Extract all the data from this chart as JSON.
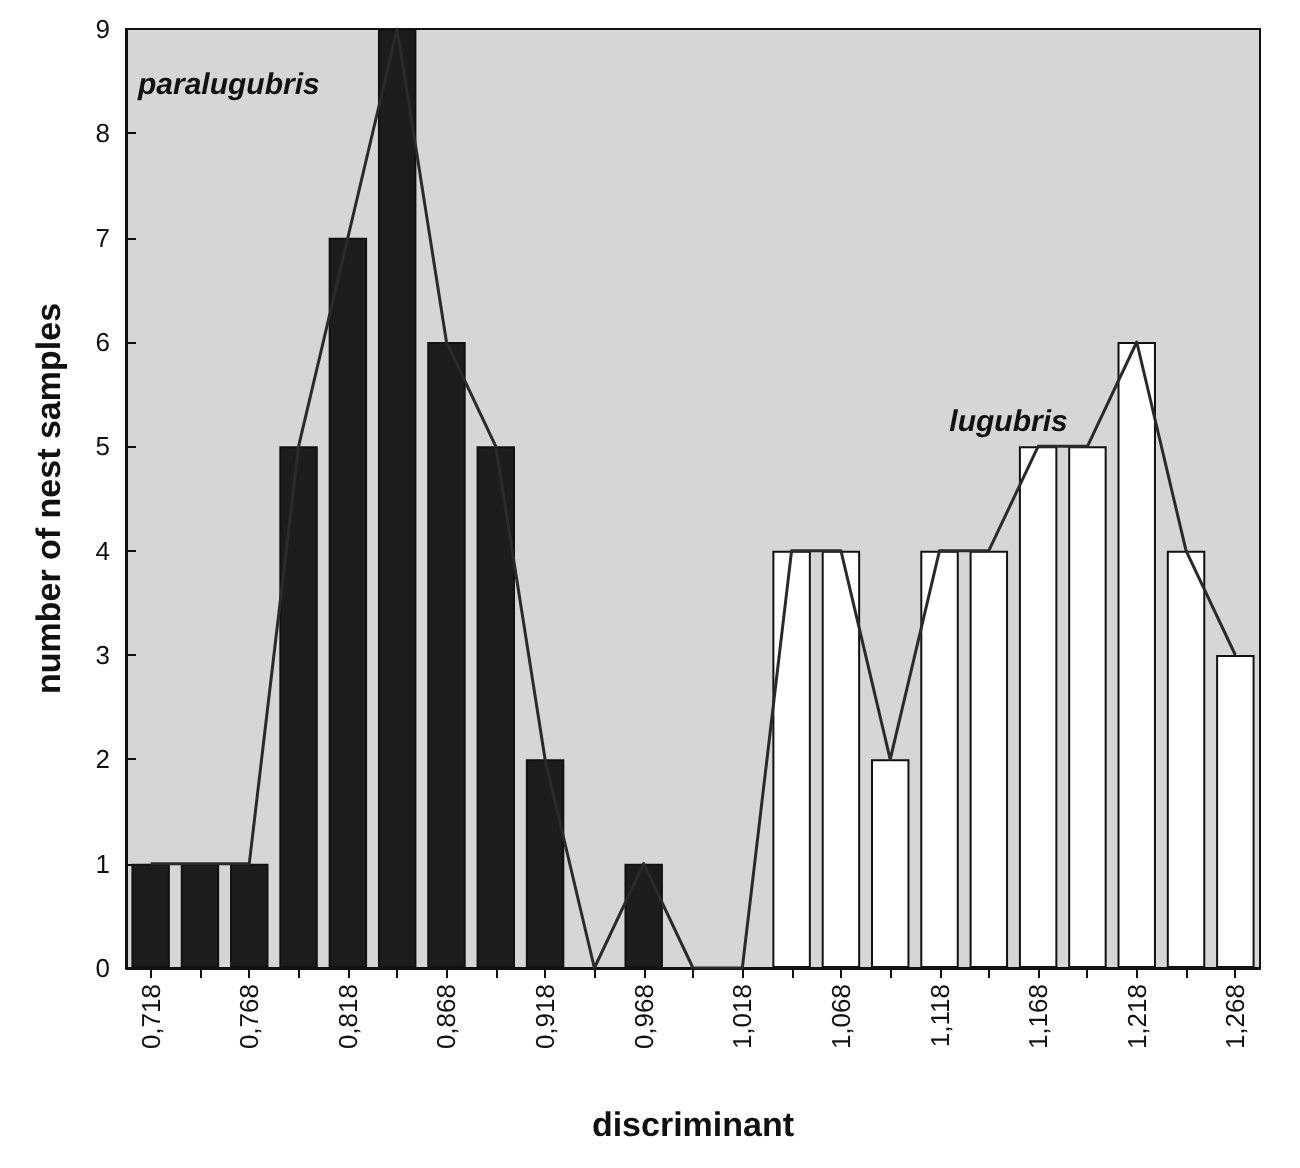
{
  "chart_data": {
    "type": "bar",
    "xlabel": "discriminant",
    "ylabel": "number of nest samples",
    "categories": [
      "0,718",
      null,
      "0,768",
      null,
      "0,818",
      null,
      "0,868",
      null,
      "0,918",
      null,
      "0,968",
      null,
      "1,018",
      null,
      "1,068",
      null,
      "1,118",
      null,
      "1,168",
      null,
      "1,218",
      null,
      "1,268"
    ],
    "stacked": true,
    "series": [
      {
        "name": "paralugubris",
        "color": "#1c1c1c",
        "values": [
          1,
          1,
          1,
          5,
          7,
          9,
          6,
          5,
          2,
          null,
          1,
          null,
          null,
          null,
          null,
          null,
          null,
          null,
          null,
          null,
          null,
          null,
          null
        ]
      },
      {
        "name": "lugubris",
        "color": "#ffffff",
        "values": [
          null,
          null,
          null,
          null,
          null,
          null,
          null,
          null,
          null,
          null,
          null,
          null,
          null,
          4,
          4,
          2,
          4,
          4,
          5,
          5,
          6,
          4,
          3
        ]
      },
      {
        "type": "line",
        "color": "#2a2a2a",
        "values": [
          1,
          1,
          1,
          5,
          7,
          9,
          6,
          5,
          2,
          0,
          1,
          0,
          0,
          4,
          4,
          2,
          4,
          4,
          5,
          5,
          6,
          4,
          3
        ]
      }
    ],
    "ylim": [
      0,
      9
    ],
    "yticks": [
      0,
      1,
      2,
      3,
      4,
      5,
      6,
      7,
      8,
      9
    ],
    "grid": false,
    "legend": false,
    "marker": "none",
    "line_style": "solid"
  }
}
